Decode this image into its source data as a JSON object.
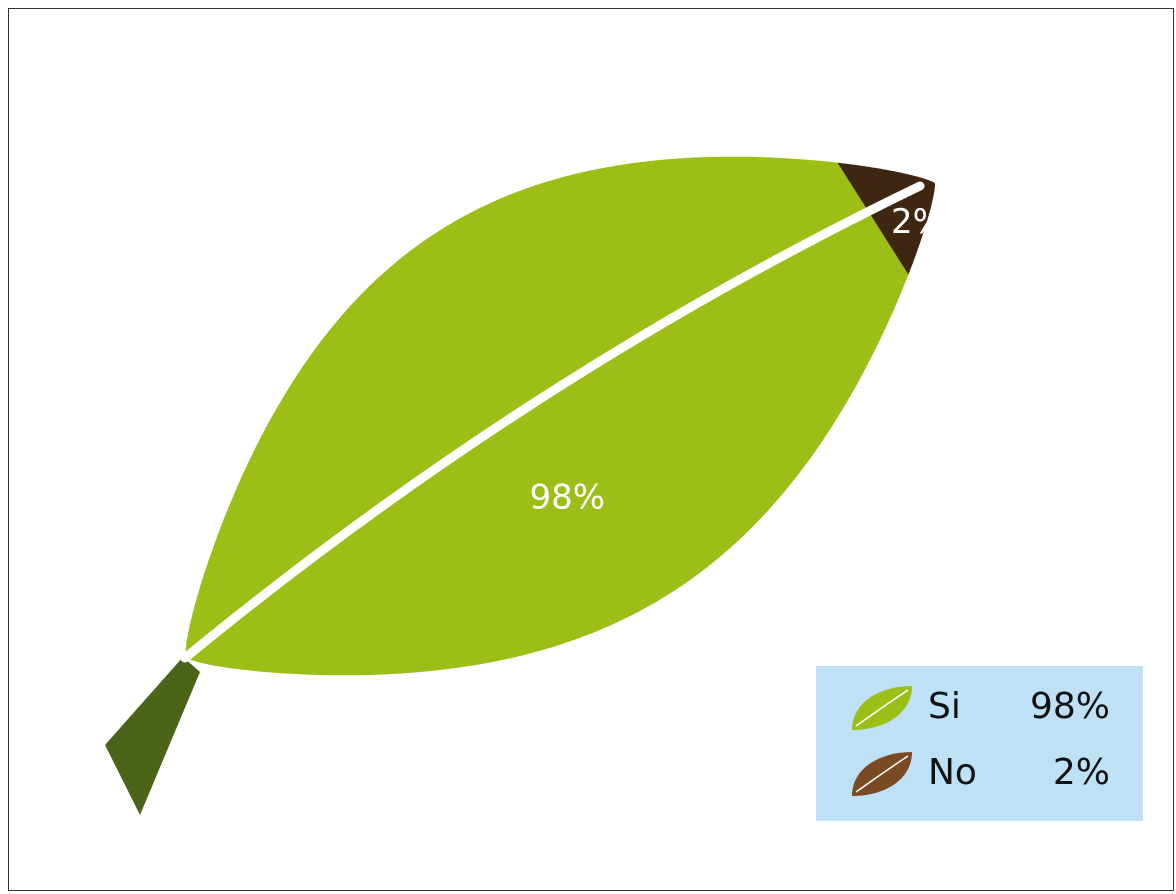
{
  "chart_data": {
    "type": "pie",
    "categories": [
      "Si",
      "No"
    ],
    "values": [
      98,
      2
    ],
    "value_labels": [
      "98%",
      "2%"
    ],
    "colors": [
      "#9bbf17",
      "#3f2611"
    ]
  }
}
